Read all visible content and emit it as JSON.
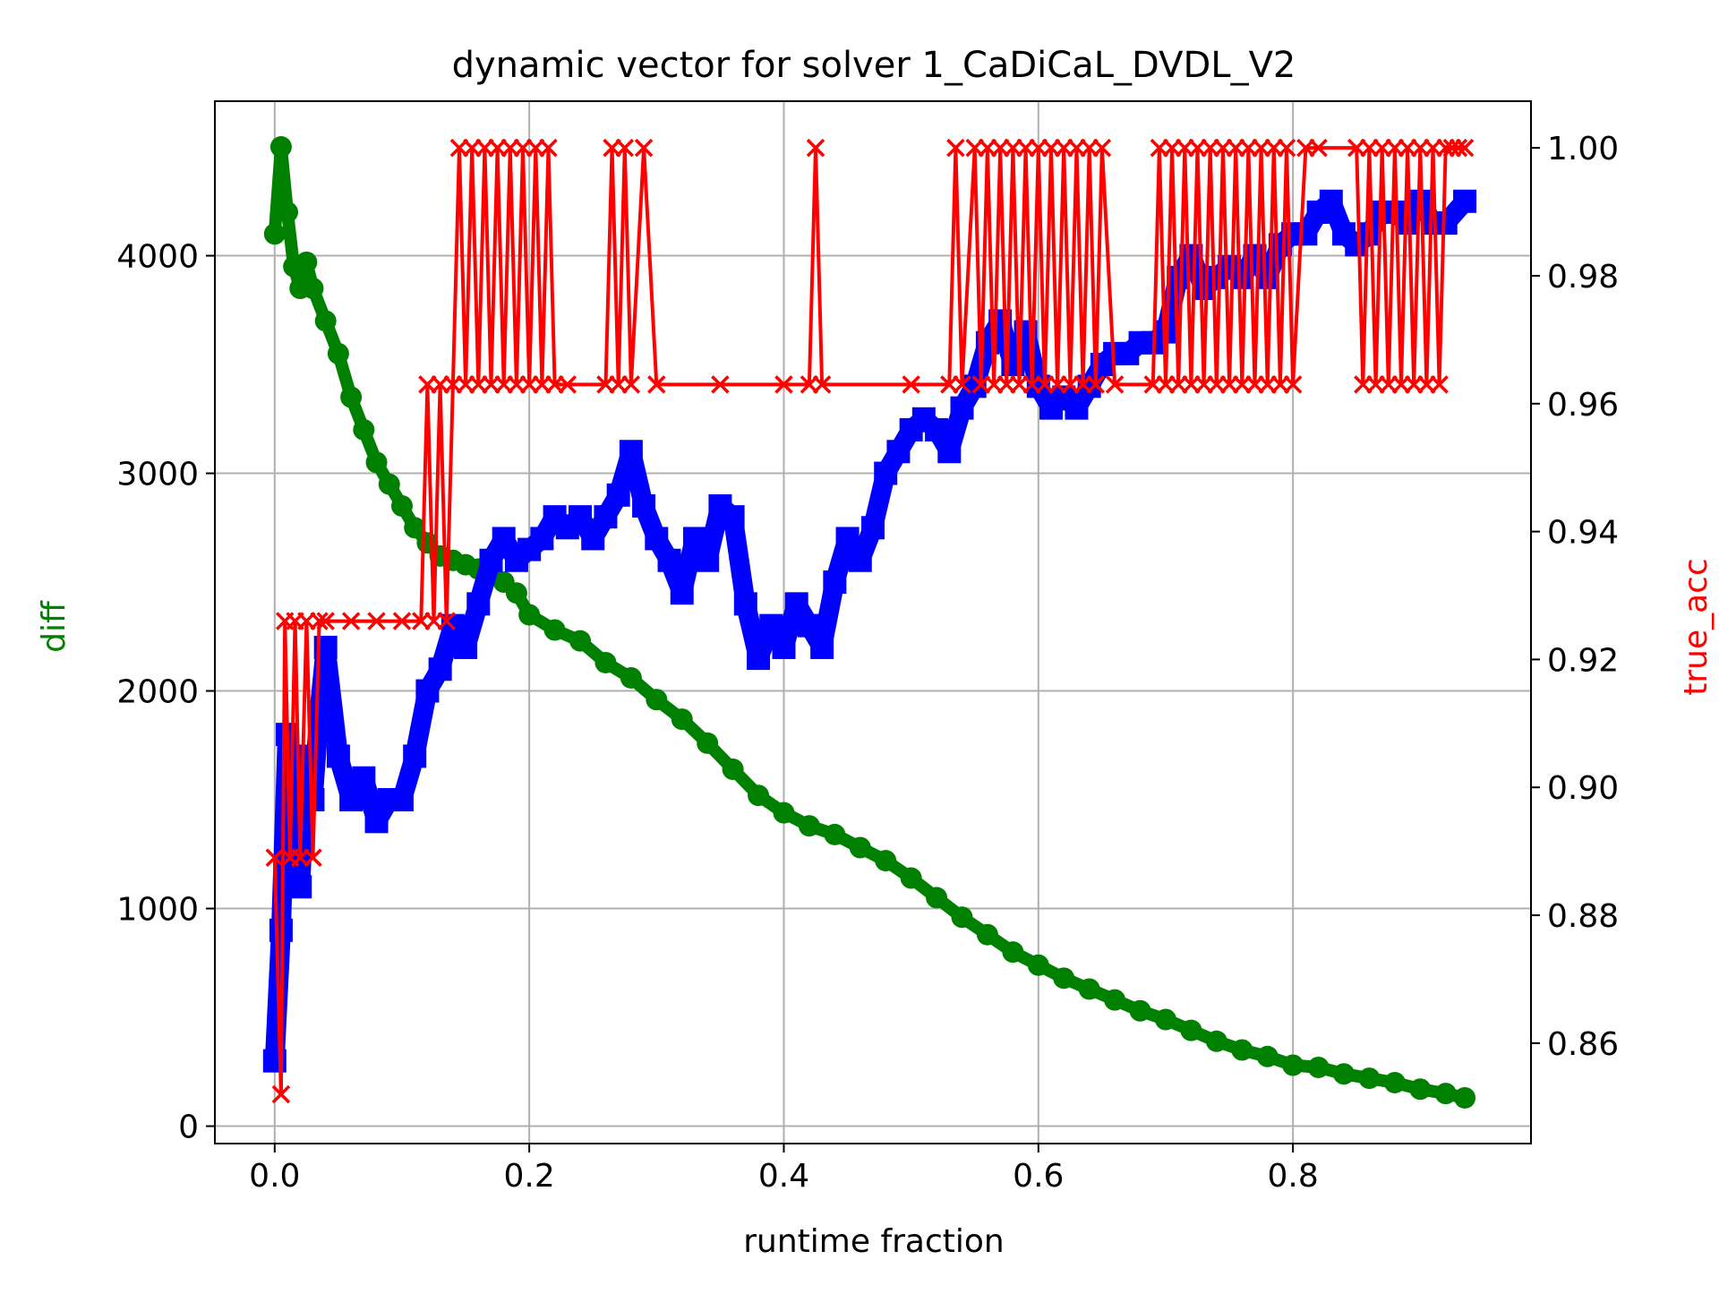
{
  "chart_data": {
    "type": "line",
    "title": "dynamic vector for solver 1_CaDiCaL_DVDL_V2",
    "xlabel": "runtime fraction",
    "ylabel": "diff",
    "ylabel_right": "true_acc",
    "xlim": [
      -0.047,
      0.987
    ],
    "ylim": [
      -80,
      4710
    ],
    "ylim_right": [
      0.8443,
      1.0073
    ],
    "grid": true,
    "x_ticks": [
      0.0,
      0.2,
      0.4,
      0.6,
      0.8
    ],
    "x_tick_labels": [
      "0.0",
      "0.2",
      "0.4",
      "0.6",
      "0.8"
    ],
    "y_ticks": [
      0,
      1000,
      2000,
      3000,
      4000
    ],
    "y_tick_labels": [
      "0",
      "1000",
      "2000",
      "3000",
      "4000"
    ],
    "y_right_ticks": [
      0.86,
      0.88,
      0.9,
      0.92,
      0.94,
      0.96,
      0.98,
      1.0
    ],
    "y_right_tick_labels": [
      "0.86",
      "0.88",
      "0.90",
      "0.92",
      "0.94",
      "0.96",
      "0.98",
      "1.00"
    ],
    "series": [
      {
        "axis": "left",
        "color": "#008000",
        "marker": "circle",
        "x": [
          0.0,
          0.005,
          0.01,
          0.015,
          0.02,
          0.025,
          0.03,
          0.04,
          0.05,
          0.06,
          0.07,
          0.08,
          0.09,
          0.1,
          0.11,
          0.12,
          0.13,
          0.14,
          0.15,
          0.16,
          0.17,
          0.18,
          0.19,
          0.2,
          0.22,
          0.24,
          0.26,
          0.28,
          0.3,
          0.32,
          0.34,
          0.36,
          0.38,
          0.4,
          0.42,
          0.44,
          0.46,
          0.48,
          0.5,
          0.52,
          0.54,
          0.56,
          0.58,
          0.6,
          0.62,
          0.64,
          0.66,
          0.68,
          0.7,
          0.72,
          0.74,
          0.76,
          0.78,
          0.8,
          0.82,
          0.84,
          0.86,
          0.88,
          0.9,
          0.92,
          0.935
        ],
        "values": [
          4100,
          4500,
          4200,
          3950,
          3850,
          3970,
          3850,
          3700,
          3550,
          3350,
          3200,
          3050,
          2950,
          2850,
          2750,
          2680,
          2620,
          2600,
          2580,
          2560,
          2530,
          2500,
          2450,
          2350,
          2280,
          2230,
          2130,
          2060,
          1960,
          1870,
          1760,
          1640,
          1520,
          1440,
          1380,
          1340,
          1280,
          1220,
          1140,
          1050,
          960,
          880,
          800,
          740,
          680,
          630,
          580,
          530,
          490,
          440,
          390,
          350,
          320,
          280,
          270,
          240,
          220,
          200,
          170,
          150,
          130
        ]
      },
      {
        "axis": "left",
        "color": "#0000ff",
        "marker": "square",
        "x": [
          0.0,
          0.005,
          0.01,
          0.015,
          0.02,
          0.025,
          0.03,
          0.035,
          0.04,
          0.05,
          0.06,
          0.07,
          0.08,
          0.09,
          0.1,
          0.11,
          0.12,
          0.13,
          0.14,
          0.15,
          0.16,
          0.17,
          0.18,
          0.19,
          0.2,
          0.21,
          0.22,
          0.23,
          0.24,
          0.25,
          0.26,
          0.27,
          0.28,
          0.29,
          0.3,
          0.31,
          0.32,
          0.33,
          0.34,
          0.35,
          0.36,
          0.37,
          0.38,
          0.39,
          0.4,
          0.41,
          0.42,
          0.43,
          0.44,
          0.45,
          0.46,
          0.47,
          0.48,
          0.49,
          0.5,
          0.51,
          0.52,
          0.53,
          0.54,
          0.55,
          0.56,
          0.57,
          0.58,
          0.59,
          0.6,
          0.61,
          0.62,
          0.63,
          0.64,
          0.65,
          0.66,
          0.67,
          0.68,
          0.69,
          0.7,
          0.71,
          0.72,
          0.73,
          0.74,
          0.75,
          0.76,
          0.77,
          0.78,
          0.79,
          0.8,
          0.81,
          0.82,
          0.83,
          0.84,
          0.85,
          0.86,
          0.87,
          0.88,
          0.89,
          0.9,
          0.91,
          0.92,
          0.935
        ],
        "values": [
          300,
          900,
          1800,
          1400,
          1100,
          1700,
          1500,
          1900,
          2200,
          1700,
          1500,
          1600,
          1400,
          1500,
          1500,
          1700,
          2000,
          2100,
          2300,
          2200,
          2400,
          2600,
          2700,
          2600,
          2650,
          2700,
          2800,
          2750,
          2800,
          2700,
          2800,
          2900,
          3100,
          2850,
          2700,
          2600,
          2450,
          2700,
          2600,
          2850,
          2800,
          2400,
          2150,
          2300,
          2200,
          2400,
          2300,
          2200,
          2500,
          2700,
          2600,
          2750,
          3000,
          3100,
          3200,
          3250,
          3200,
          3100,
          3300,
          3400,
          3600,
          3700,
          3500,
          3650,
          3400,
          3300,
          3350,
          3300,
          3400,
          3500,
          3550,
          3550,
          3600,
          3600,
          3650,
          3900,
          4000,
          3850,
          3900,
          3950,
          3900,
          4000,
          3900,
          4050,
          4100,
          4100,
          4200,
          4250,
          4100,
          4050,
          4100,
          4200,
          4200,
          4150,
          4250,
          4150,
          4150,
          4250
        ]
      },
      {
        "axis": "right",
        "color": "#ff0000",
        "marker": "x",
        "x": [
          0.0,
          0.005,
          0.008,
          0.012,
          0.016,
          0.02,
          0.025,
          0.03,
          0.035,
          0.04,
          0.06,
          0.08,
          0.1,
          0.115,
          0.12,
          0.125,
          0.13,
          0.135,
          0.14,
          0.145,
          0.15,
          0.155,
          0.16,
          0.165,
          0.17,
          0.175,
          0.18,
          0.185,
          0.19,
          0.195,
          0.2,
          0.205,
          0.21,
          0.215,
          0.22,
          0.23,
          0.26,
          0.265,
          0.27,
          0.275,
          0.28,
          0.29,
          0.3,
          0.35,
          0.4,
          0.42,
          0.425,
          0.43,
          0.5,
          0.53,
          0.535,
          0.54,
          0.55,
          0.555,
          0.56,
          0.565,
          0.57,
          0.575,
          0.58,
          0.585,
          0.59,
          0.595,
          0.6,
          0.605,
          0.61,
          0.615,
          0.62,
          0.625,
          0.63,
          0.635,
          0.64,
          0.645,
          0.65,
          0.66,
          0.69,
          0.695,
          0.7,
          0.705,
          0.71,
          0.715,
          0.72,
          0.725,
          0.73,
          0.735,
          0.74,
          0.745,
          0.75,
          0.755,
          0.76,
          0.765,
          0.77,
          0.775,
          0.78,
          0.785,
          0.79,
          0.795,
          0.8,
          0.81,
          0.82,
          0.85,
          0.855,
          0.86,
          0.865,
          0.87,
          0.875,
          0.88,
          0.885,
          0.89,
          0.895,
          0.9,
          0.905,
          0.91,
          0.915,
          0.92,
          0.925,
          0.93,
          0.935
        ],
        "values": [
          0.889,
          0.852,
          0.926,
          0.889,
          0.926,
          0.889,
          0.926,
          0.889,
          0.926,
          0.926,
          0.926,
          0.926,
          0.926,
          0.926,
          0.963,
          0.926,
          0.963,
          0.926,
          0.963,
          1.0,
          0.963,
          1.0,
          0.963,
          1.0,
          0.963,
          1.0,
          0.963,
          1.0,
          0.963,
          1.0,
          0.963,
          1.0,
          0.963,
          1.0,
          0.963,
          0.963,
          0.963,
          1.0,
          0.963,
          1.0,
          0.963,
          1.0,
          0.963,
          0.963,
          0.963,
          0.963,
          1.0,
          0.963,
          0.963,
          0.963,
          1.0,
          0.963,
          1.0,
          0.963,
          1.0,
          0.963,
          1.0,
          0.963,
          1.0,
          0.963,
          1.0,
          0.963,
          1.0,
          0.963,
          1.0,
          0.963,
          1.0,
          0.963,
          1.0,
          0.963,
          1.0,
          0.963,
          1.0,
          0.963,
          0.963,
          1.0,
          0.963,
          1.0,
          0.963,
          1.0,
          0.963,
          1.0,
          0.963,
          1.0,
          0.963,
          1.0,
          0.963,
          1.0,
          0.963,
          1.0,
          0.963,
          1.0,
          0.963,
          1.0,
          0.963,
          1.0,
          0.963,
          1.0,
          1.0,
          1.0,
          0.963,
          1.0,
          0.963,
          1.0,
          0.963,
          1.0,
          0.963,
          1.0,
          0.963,
          1.0,
          0.963,
          1.0,
          0.963,
          1.0,
          1.0,
          1.0,
          1.0
        ]
      }
    ]
  }
}
